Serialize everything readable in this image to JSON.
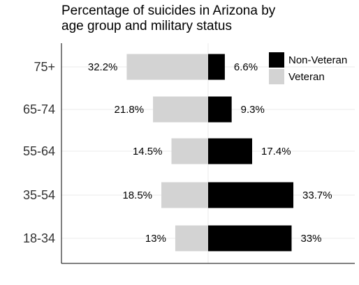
{
  "chart_data": {
    "type": "bar",
    "orientation": "horizontal-diverging",
    "title_lines": [
      "Percentage of suicides in Arizona by",
      "age group and military status"
    ],
    "categories": [
      "75+",
      "65-74",
      "55-64",
      "35-54",
      "18-34"
    ],
    "series": [
      {
        "name": "Non-Veteran",
        "color": "#000000",
        "side": "right",
        "values": [
          6.6,
          9.3,
          17.4,
          33.7,
          33
        ],
        "labels": [
          "6.6%",
          "9.3%",
          "17.4%",
          "33.7%",
          "33%"
        ]
      },
      {
        "name": "Veteran",
        "color": "#d3d3d3",
        "side": "left",
        "values": [
          32.2,
          21.8,
          14.5,
          18.5,
          13
        ],
        "labels": [
          "32.2%",
          "21.8%",
          "14.5%",
          "18.5%",
          "13%"
        ]
      }
    ],
    "xlim": [
      -58,
      58
    ],
    "legend_position": "top-right",
    "grid": true,
    "axis_color": "#000000",
    "grid_color": "#ebebeb"
  }
}
